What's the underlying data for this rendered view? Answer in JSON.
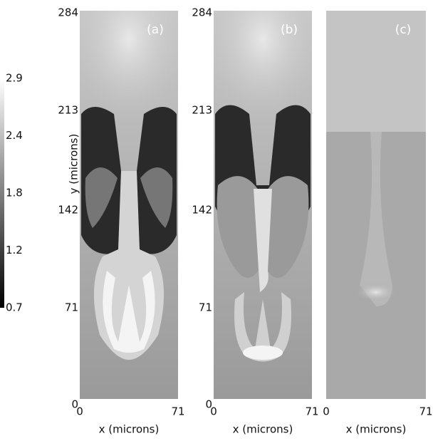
{
  "colorbar": {
    "ticks": [
      "2.9",
      "2.4",
      "1.8",
      "1.2",
      "0.7"
    ]
  },
  "panels": [
    {
      "label": "(a)",
      "y_label": "y (microns)",
      "y_ticks": [
        "284",
        "213",
        "142",
        "71",
        "0"
      ],
      "x_ticks": [
        "0",
        "71"
      ],
      "x_label": "x (microns)"
    },
    {
      "label": "(b)",
      "y_ticks": [
        "284",
        "213",
        "142",
        "71",
        "0"
      ],
      "x_ticks": [
        "0",
        "71"
      ],
      "x_label": "x (microns)"
    },
    {
      "label": "(c)",
      "x_ticks": [
        "0",
        "71"
      ],
      "x_label": "x (microns)"
    }
  ]
}
